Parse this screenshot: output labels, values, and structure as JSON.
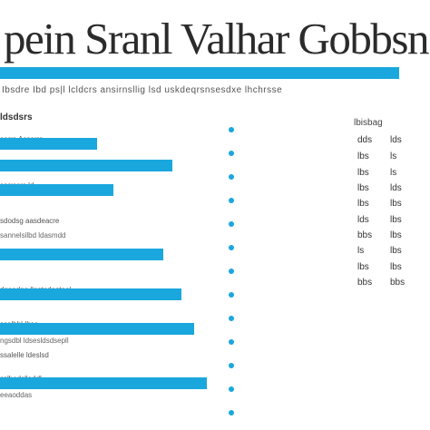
{
  "title": "pein Sranl Valhar Gobbsns",
  "subtitle": "Ibsdre Ibd  ps|l lcldcrs  ansirnsllig  lsd uskdeqrsnsesdxe lhchrsse",
  "section_label": "ldsdsrs",
  "right_header": "lbisbag",
  "rows": [
    {
      "label": "sorre Asserra",
      "fill": 0.226,
      "note": ""
    },
    {
      "label": "",
      "fill": 0.401,
      "note": ""
    },
    {
      "label": "sorresrs ld",
      "fill": 0.264,
      "note": ""
    },
    {
      "label": "sdodsg aasdeacre",
      "fill": 0.0,
      "note": "sannelsilbd ldasmdd"
    },
    {
      "label": "",
      "fill": 0.38,
      "note": ""
    },
    {
      "label": "deeadeo llastadeoteol",
      "fill": 0.422,
      "note": ""
    },
    {
      "label": "ssalbbl Ibsc",
      "fill": 0.451,
      "note": "ngsdbl ldsesldsdsepll"
    },
    {
      "label": "ssalelle ldeslsd",
      "fill": 0.0,
      "note": ""
    },
    {
      "label": "sslbedslleddl",
      "fill": 0.481,
      "note": "eeaoddas"
    }
  ],
  "values_left": [
    "dds",
    "lbs",
    "lbs",
    "lbs",
    "lbs",
    "lds",
    "bbs",
    "ls",
    "lbs",
    "bbs"
  ],
  "values_right": [
    "lds",
    "ls",
    "ls",
    "lds",
    "lbs",
    "lbs",
    "lbs",
    "lbs",
    "lbs",
    "bbs"
  ],
  "dot_count": 13,
  "colors": {
    "accent": "#1aa7de",
    "text": "#2b2b2b"
  }
}
